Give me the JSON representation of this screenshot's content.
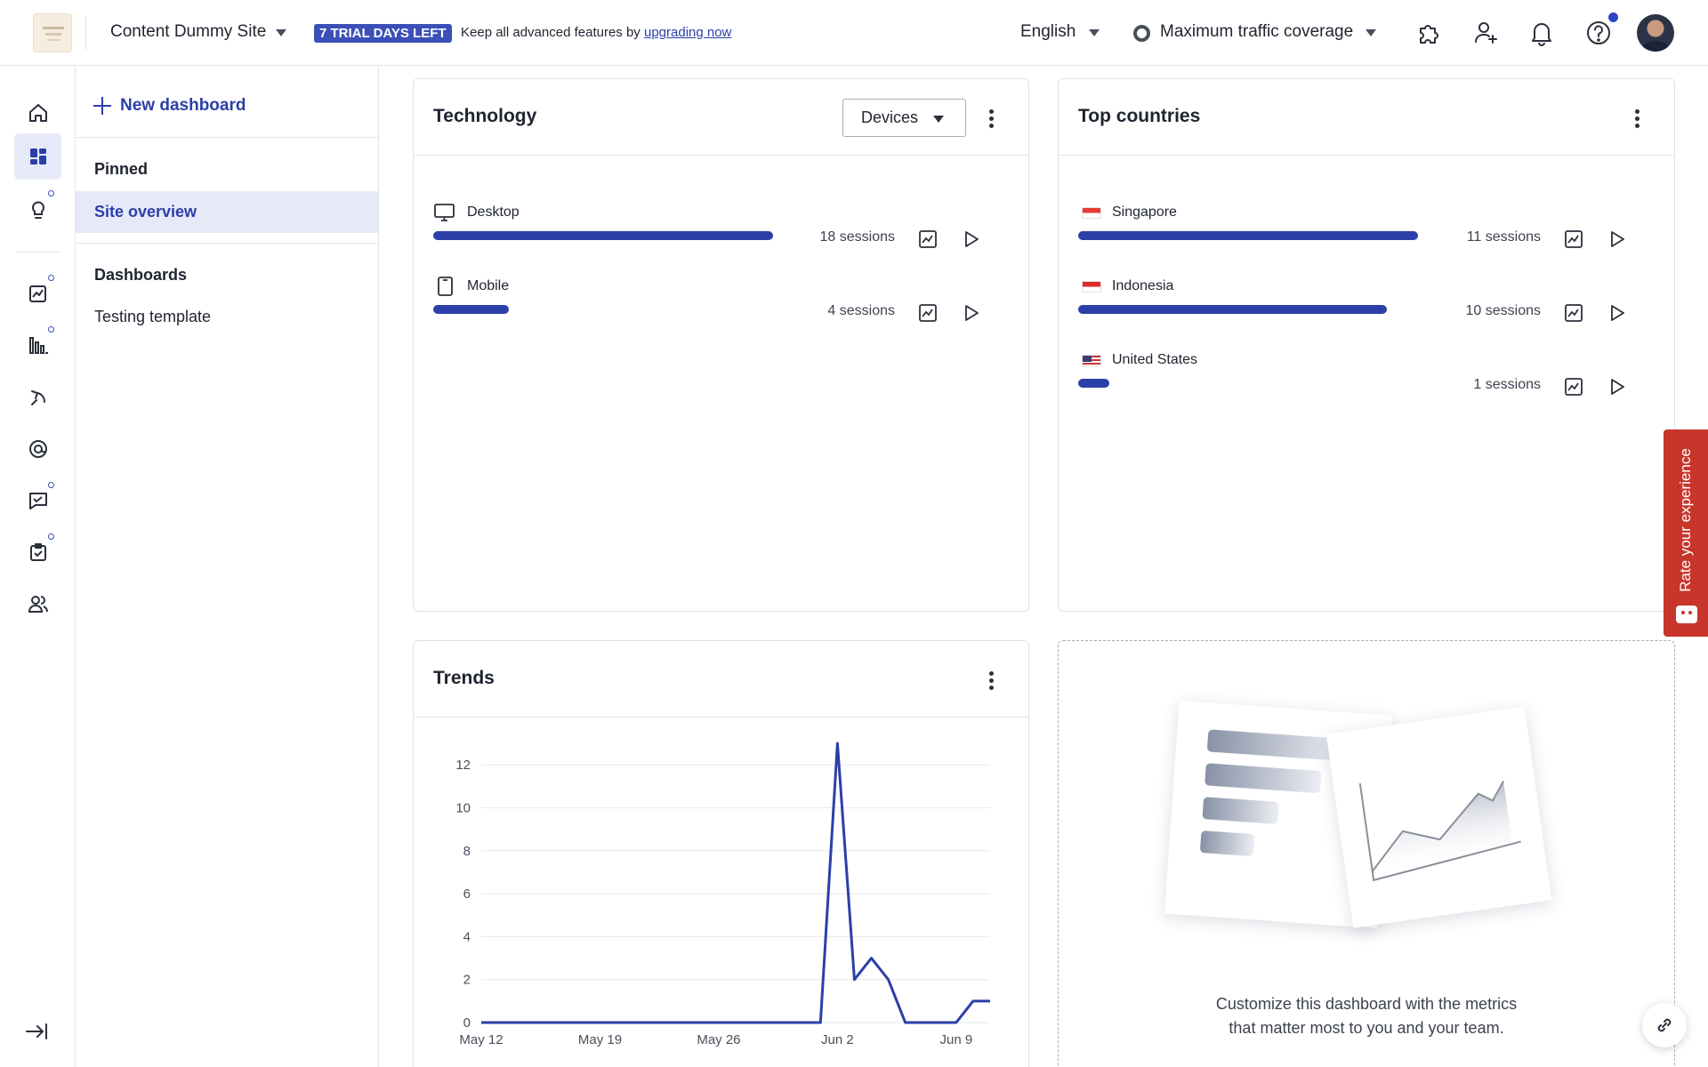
{
  "topbar": {
    "site_name": "Content Dummy Site",
    "trial_badge": "7 TRIAL DAYS LEFT",
    "trial_message": "Keep all advanced features by ",
    "trial_link": "upgrading now",
    "language": "English",
    "traffic": "Maximum traffic coverage",
    "icons": [
      "puzzle-icon",
      "add-user-icon",
      "bell-icon",
      "help-icon"
    ]
  },
  "rail": {
    "items": [
      "home-icon",
      "dashboard-icon",
      "lightbulb-icon",
      "trends-icon",
      "bar-chart-icon",
      "journey-icon",
      "at-sign-icon",
      "feedback-icon",
      "survey-icon",
      "users-icon"
    ]
  },
  "dashboard_nav": {
    "new_dashboard": "New dashboard",
    "pinned_heading": "Pinned",
    "pinned_items": [
      "Site overview"
    ],
    "dashboards_heading": "Dashboards",
    "dashboard_items": [
      "Testing template"
    ]
  },
  "technology": {
    "title": "Technology",
    "dropdown": "Devices",
    "rows": [
      {
        "label": "Desktop",
        "sessions": "18 sessions",
        "value": 18,
        "icon": "desktop-icon"
      },
      {
        "label": "Mobile",
        "sessions": "4 sessions",
        "value": 4,
        "icon": "mobile-icon"
      }
    ]
  },
  "countries": {
    "title": "Top countries",
    "rows": [
      {
        "label": "Singapore",
        "sessions": "11 sessions",
        "value": 11,
        "icon": "singapore-flag-icon"
      },
      {
        "label": "Indonesia",
        "sessions": "10 sessions",
        "value": 10,
        "icon": "indonesia-flag-icon"
      },
      {
        "label": "United States",
        "sessions": "1 sessions",
        "value": 1,
        "icon": "us-flag-icon"
      }
    ]
  },
  "trends": {
    "title": "Trends"
  },
  "chart_data": {
    "type": "line",
    "title": "Trends",
    "xlabel": "",
    "ylabel": "",
    "x_tick_labels": [
      "May 12",
      "May 19",
      "May 26",
      "Jun 2",
      "Jun 9"
    ],
    "y_ticks": [
      0,
      2,
      4,
      6,
      8,
      10,
      12
    ],
    "ylim": [
      0,
      13
    ],
    "grid": true,
    "series": [
      {
        "x": [
          "May 12",
          "May 13",
          "May 14",
          "May 15",
          "May 16",
          "May 17",
          "May 18",
          "May 19",
          "May 20",
          "May 21",
          "May 22",
          "May 23",
          "May 24",
          "May 25",
          "May 26",
          "May 27",
          "May 28",
          "May 29",
          "May 30",
          "May 31",
          "Jun 1",
          "Jun 2",
          "Jun 3",
          "Jun 4",
          "Jun 5",
          "Jun 6",
          "Jun 7",
          "Jun 8",
          "Jun 9",
          "Jun 10",
          "Jun 11"
        ],
        "values": [
          0,
          0,
          0,
          0,
          0,
          0,
          0,
          0,
          0,
          0,
          0,
          0,
          0,
          0,
          0,
          0,
          0,
          0,
          0,
          0,
          0,
          13,
          2,
          3,
          2,
          0,
          0,
          0,
          0,
          1,
          1
        ],
        "color": "#2c3fa8"
      }
    ]
  },
  "empty_state": {
    "line1": "Customize this dashboard with the metrics",
    "line2": "that matter most to you and your team."
  },
  "rate": {
    "label": "Rate your experience"
  },
  "colors": {
    "accent": "#2c3fa8",
    "badge": "#3b4fb8",
    "rate_tab": "#c8362b"
  }
}
